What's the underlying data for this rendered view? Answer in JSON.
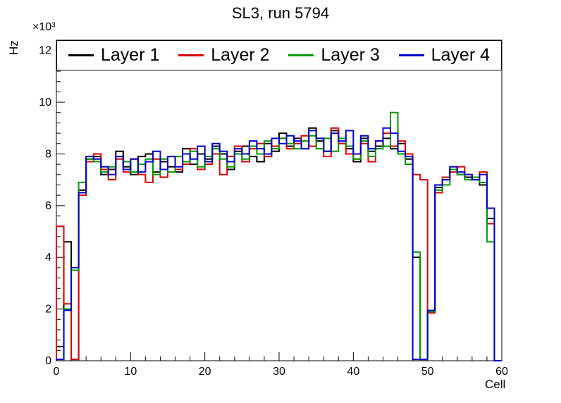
{
  "chart_data": {
    "type": "line",
    "render": "step-histogram",
    "title": "SL3, run 5794",
    "xlabel": "Cell",
    "ylabel": "Hz",
    "y_multiplier": "×10³",
    "values_unit": "10^3 Hz",
    "xlim": [
      0,
      60
    ],
    "ylim": [
      0,
      12.4
    ],
    "x_bins": 60,
    "bin_width": 1,
    "x_ticks": [
      0,
      10,
      20,
      30,
      40,
      50,
      60
    ],
    "y_ticks": [
      0,
      2,
      4,
      6,
      8,
      10,
      12
    ],
    "x_minor_step": 2,
    "y_minor_step": 0.4,
    "grid": false,
    "legend_position": "top-inside",
    "frame_color": "#000000",
    "series": [
      {
        "name": "Layer 1",
        "color": "#000000",
        "values": [
          0.55,
          4.6,
          0.05,
          6.6,
          7.8,
          7.9,
          7.2,
          7.4,
          8.1,
          7.5,
          7.2,
          7.9,
          8.0,
          7.3,
          7.7,
          7.5,
          7.3,
          8.2,
          7.6,
          8.0,
          7.8,
          8.3,
          8.0,
          7.4,
          8.1,
          8.3,
          7.9,
          7.7,
          8.4,
          8.1,
          8.8,
          8.3,
          8.6,
          8.2,
          9.0,
          8.5,
          8.1,
          8.9,
          8.4,
          8.2,
          7.7,
          8.6,
          8.1,
          8.3,
          8.6,
          8.2,
          8.4,
          7.8,
          4.0,
          0.05,
          1.9,
          6.7,
          7.0,
          7.4,
          7.2,
          7.1,
          7.0,
          6.8,
          5.5,
          0.0
        ]
      },
      {
        "name": "Layer 2",
        "color": "#dd0000",
        "values": [
          5.2,
          2.2,
          0.05,
          6.4,
          7.7,
          8.0,
          7.4,
          7.0,
          7.8,
          7.3,
          7.8,
          7.2,
          6.9,
          7.8,
          7.1,
          7.9,
          7.4,
          7.6,
          8.2,
          7.4,
          7.6,
          8.0,
          7.2,
          7.9,
          8.3,
          7.7,
          8.2,
          8.4,
          7.9,
          8.3,
          8.6,
          8.2,
          8.4,
          8.7,
          8.3,
          8.6,
          7.9,
          9.0,
          8.4,
          8.0,
          7.8,
          8.4,
          7.7,
          8.5,
          8.8,
          8.3,
          8.5,
          8.0,
          7.2,
          7.0,
          1.85,
          6.5,
          7.1,
          7.3,
          7.5,
          7.2,
          7.1,
          7.3,
          5.3,
          0.0
        ]
      },
      {
        "name": "Layer 3",
        "color": "#009900",
        "values": [
          0.05,
          2.0,
          3.5,
          6.9,
          7.8,
          7.7,
          7.3,
          7.5,
          7.9,
          7.7,
          7.3,
          7.6,
          7.8,
          7.2,
          7.8,
          7.3,
          7.9,
          7.7,
          8.1,
          7.5,
          7.9,
          8.2,
          7.8,
          7.5,
          8.0,
          7.8,
          8.3,
          8.0,
          8.5,
          8.2,
          8.6,
          8.4,
          8.2,
          8.5,
          8.7,
          8.2,
          8.6,
          8.1,
          8.6,
          8.3,
          7.8,
          8.5,
          7.9,
          8.2,
          8.3,
          9.6,
          8.0,
          7.6,
          4.2,
          0.05,
          1.9,
          6.6,
          6.8,
          7.4,
          7.2,
          7.0,
          7.1,
          6.9,
          4.6,
          0.0
        ]
      },
      {
        "name": "Layer 4",
        "color": "#0000cc",
        "values": [
          0.05,
          1.95,
          3.6,
          6.5,
          7.9,
          7.8,
          7.5,
          7.2,
          7.9,
          7.4,
          7.8,
          7.3,
          7.7,
          8.1,
          7.4,
          7.9,
          7.5,
          8.0,
          7.8,
          8.3,
          7.7,
          8.4,
          8.1,
          7.7,
          8.2,
          8.0,
          8.5,
          8.2,
          8.0,
          8.6,
          8.4,
          8.7,
          8.5,
          8.2,
          8.9,
          8.6,
          8.1,
          8.8,
          8.5,
          8.9,
          8.0,
          8.7,
          8.2,
          8.5,
          9.0,
          8.8,
          8.1,
          7.9,
          0.05,
          0.05,
          1.95,
          6.8,
          7.0,
          7.5,
          7.3,
          7.2,
          7.0,
          7.2,
          5.9,
          0.0
        ]
      }
    ]
  }
}
